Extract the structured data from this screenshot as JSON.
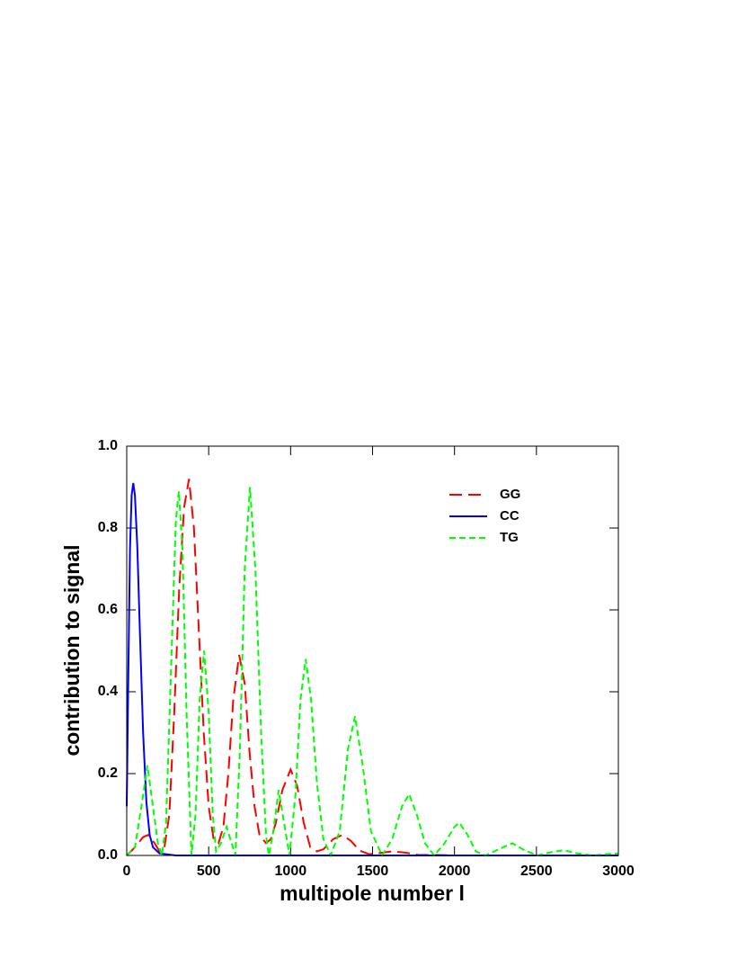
{
  "chart_data": {
    "type": "line",
    "xlabel": "multipole number l",
    "ylabel": "contribution to signal",
    "xlim": [
      0,
      3000
    ],
    "ylim": [
      0,
      1.0
    ],
    "xticks": [
      0,
      500,
      1000,
      1500,
      2000,
      2500,
      3000
    ],
    "yticks": [
      {
        "value": 0,
        "label": "0.0"
      },
      {
        "value": 0.2,
        "label": "0.2"
      },
      {
        "value": 0.4,
        "label": "0.4"
      },
      {
        "value": 0.6,
        "label": "0.6"
      },
      {
        "value": 0.8,
        "label": "0.8"
      },
      {
        "value": 1.0,
        "label": "1.0"
      }
    ],
    "legend": "upper right",
    "series": [
      {
        "name": "GG",
        "color": "#ff0000",
        "dash": "long",
        "x": [
          0,
          50,
          100,
          130,
          170,
          200,
          230,
          260,
          290,
          320,
          350,
          380,
          410,
          440,
          470,
          500,
          530,
          560,
          590,
          620,
          650,
          686,
          720,
          750,
          780,
          810,
          850,
          880,
          910,
          950,
          1000,
          1040,
          1080,
          1120,
          1160,
          1200,
          1260,
          1316,
          1370,
          1420,
          1480,
          1550,
          1620,
          1700,
          1780,
          1900,
          2000,
          3000
        ],
        "values": [
          0,
          0.02,
          0.045,
          0.05,
          0.03,
          0.01,
          0.02,
          0.1,
          0.35,
          0.65,
          0.85,
          0.92,
          0.8,
          0.55,
          0.3,
          0.12,
          0.04,
          0.03,
          0.07,
          0.2,
          0.38,
          0.49,
          0.42,
          0.25,
          0.12,
          0.05,
          0.03,
          0.04,
          0.08,
          0.16,
          0.21,
          0.17,
          0.08,
          0.02,
          0.01,
          0.015,
          0.04,
          0.05,
          0.035,
          0.012,
          0.003,
          0.006,
          0.01,
          0.007,
          0.001,
          0.001,
          0,
          0
        ]
      },
      {
        "name": "CC",
        "color": "#0000ff",
        "dash": "solid",
        "x": [
          0,
          10,
          20,
          30,
          40,
          50,
          65,
          80,
          100,
          120,
          140,
          160,
          200,
          300,
          3000
        ],
        "values": [
          0.12,
          0.45,
          0.75,
          0.88,
          0.91,
          0.88,
          0.75,
          0.55,
          0.3,
          0.13,
          0.05,
          0.02,
          0.005,
          0,
          0
        ]
      },
      {
        "name": "TG",
        "color": "#00ff00",
        "dash": "short",
        "x": [
          0,
          50,
          90,
          126,
          160,
          190,
          215,
          240,
          270,
          300,
          318,
          340,
          365,
          395,
          420,
          445,
          472,
          500,
          525,
          545,
          575,
          609,
          640,
          663,
          690,
          720,
          752,
          785,
          820,
          850,
          867,
          895,
          927,
          960,
          993,
          1030,
          1060,
          1092,
          1125,
          1160,
          1200,
          1245,
          1300,
          1350,
          1393,
          1440,
          1490,
          1558,
          1620,
          1680,
          1723,
          1770,
          1820,
          1876,
          1940,
          2000,
          2030,
          2080,
          2130,
          2189,
          2270,
          2353,
          2430,
          2507,
          2590,
          2666,
          2750,
          2847,
          2920,
          3000
        ],
        "values": [
          0,
          0.02,
          0.12,
          0.22,
          0.12,
          0.03,
          0,
          0.08,
          0.45,
          0.82,
          0.89,
          0.75,
          0.35,
          0,
          0.1,
          0.38,
          0.5,
          0.35,
          0.1,
          0.01,
          0.03,
          0.07,
          0.03,
          0,
          0.25,
          0.7,
          0.9,
          0.7,
          0.3,
          0.05,
          0,
          0.06,
          0.16,
          0.08,
          0,
          0.15,
          0.38,
          0.48,
          0.38,
          0.18,
          0.04,
          0,
          0.06,
          0.26,
          0.34,
          0.22,
          0.06,
          0,
          0.04,
          0.12,
          0.15,
          0.1,
          0.03,
          0,
          0.03,
          0.07,
          0.08,
          0.05,
          0.01,
          0,
          0.015,
          0.03,
          0.012,
          0,
          0.008,
          0.013,
          0.005,
          0,
          0.003,
          0.005
        ]
      }
    ]
  }
}
